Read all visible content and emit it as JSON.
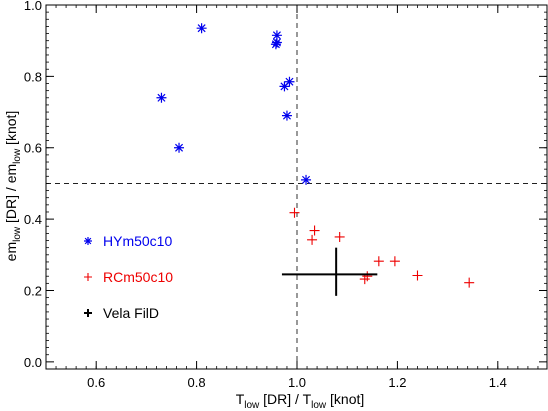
{
  "chart_data": {
    "type": "scatter",
    "title": "",
    "xlabel": {
      "main": "T",
      "sub1": "low",
      "mid": " [DR] / T",
      "sub2": "low",
      "end": " [knot]"
    },
    "ylabel": {
      "main": "em",
      "sub1": "low",
      "mid": " [DR] / em",
      "sub2": "low",
      "end": " [knot]"
    },
    "xlim": [
      0.5,
      1.5
    ],
    "ylim": [
      -0.02,
      1.0
    ],
    "xticks": [
      0.6,
      0.8,
      1.0,
      1.2,
      1.4
    ],
    "xtick_labels": [
      "0.6",
      "0.8",
      "1.0",
      "1.2",
      "1.4"
    ],
    "yticks": [
      0.0,
      0.2,
      0.4,
      0.6,
      0.8,
      1.0
    ],
    "ytick_labels": [
      "0.0",
      "0.2",
      "0.4",
      "0.6",
      "0.8",
      "1.0"
    ],
    "grid": false,
    "reference_lines": {
      "x": 1.0,
      "y": 0.5
    },
    "legend_position": "left",
    "series": [
      {
        "name": "HYm50c10",
        "marker": "asterisk",
        "color": "#0000ee",
        "points": [
          [
            0.81,
            0.935
          ],
          [
            0.96,
            0.915
          ],
          [
            0.96,
            0.895
          ],
          [
            0.958,
            0.89
          ],
          [
            0.73,
            0.74
          ],
          [
            0.985,
            0.785
          ],
          [
            0.975,
            0.772
          ],
          [
            0.98,
            0.69
          ],
          [
            0.765,
            0.6
          ],
          [
            1.018,
            0.51
          ]
        ]
      },
      {
        "name": "RCm50c10",
        "marker": "plus",
        "color": "#ee0000",
        "points": [
          [
            0.995,
            0.418
          ],
          [
            1.035,
            0.368
          ],
          [
            1.03,
            0.342
          ],
          [
            1.085,
            0.35
          ],
          [
            1.163,
            0.282
          ],
          [
            1.195,
            0.282
          ],
          [
            1.14,
            0.24
          ],
          [
            1.135,
            0.232
          ],
          [
            1.24,
            0.242
          ],
          [
            1.343,
            0.222
          ]
        ]
      },
      {
        "name": "Vela FilD",
        "marker": "errorbar",
        "color": "#000000",
        "center": [
          1.078,
          0.245
        ],
        "xerr": [
          0.97,
          1.16
        ],
        "yerr": [
          0.185,
          0.32
        ]
      }
    ]
  }
}
